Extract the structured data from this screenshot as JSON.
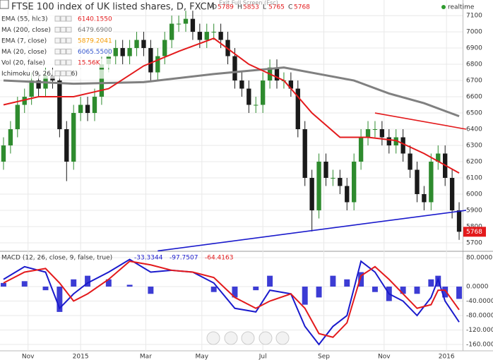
{
  "chart_data": [
    {
      "type": "candlestick",
      "title": "FTSE 100 index of UK listed shares, D, FXCM",
      "realtime": "realtime",
      "overlay_text": "Exit Full Screen (Esc)",
      "ohlc": [
        {
          "label": "O",
          "value": 5789
        },
        {
          "label": "H",
          "value": 5853
        },
        {
          "label": "L",
          "value": 5765
        },
        {
          "label": "C",
          "value": 5768
        }
      ],
      "legend": [
        {
          "label": "EMA (55, hlc3)",
          "value": "6140.1550",
          "color": "#e31a1c"
        },
        {
          "label": "MA (200, close)",
          "value": "6479.6900",
          "color": "#777777"
        },
        {
          "label": "EMA (7, close)",
          "value": "5879.2041",
          "color": "#f59b00"
        },
        {
          "label": "MA (20, close)",
          "value": "6065.5500",
          "color": "#3355cc"
        },
        {
          "label": "Vol (20, false)",
          "value": "15.56K",
          "color": "#e31a1c"
        },
        {
          "label": "Ichimoku (9, 26, 52, 26)",
          "value": "",
          "color": "#bbbbbb"
        }
      ],
      "up_color": "#2e8b2e",
      "down_color": "#1a1a1a",
      "open": [
        6200,
        6300,
        6400,
        6550,
        6600,
        6700,
        6650,
        6730,
        6700,
        6400,
        6200,
        6500,
        6550,
        6500,
        6600,
        6800,
        6850,
        6900,
        6850,
        6900,
        6950,
        6900,
        6750,
        6850,
        6950,
        7050,
        7050,
        7080,
        7000,
        6950,
        7000,
        7000,
        6950,
        6850,
        6700,
        6650,
        6550,
        6550,
        6700,
        6780,
        6700,
        6700,
        6650,
        6400,
        6100,
        5900,
        6200,
        6100,
        6100,
        6050,
        5950,
        6200,
        6350,
        6400,
        6400,
        6350,
        6300,
        6350,
        6250,
        6150,
        6000,
        5950,
        6200,
        6250,
        6100,
        5900
      ],
      "high": [
        6350,
        6450,
        6600,
        6650,
        6750,
        6750,
        6780,
        6780,
        6750,
        6450,
        6550,
        6600,
        6600,
        6650,
        6850,
        6900,
        6950,
        6950,
        6950,
        7000,
        7000,
        6950,
        6900,
        7000,
        7100,
        7100,
        7130,
        7130,
        7050,
        7050,
        7050,
        7050,
        7000,
        6900,
        6750,
        6700,
        6600,
        6750,
        6830,
        6830,
        6750,
        6750,
        6700,
        6450,
        6150,
        6250,
        6250,
        6150,
        6150,
        6100,
        6250,
        6400,
        6450,
        6450,
        6450,
        6400,
        6400,
        6400,
        6300,
        6200,
        6050,
        6250,
        6300,
        6300,
        6150,
        5950
      ],
      "low": [
        6150,
        6250,
        6350,
        6500,
        6550,
        6600,
        6600,
        6650,
        6350,
        6080,
        6150,
        6450,
        6450,
        6450,
        6550,
        6750,
        6800,
        6800,
        6800,
        6850,
        6850,
        6700,
        6700,
        6800,
        6900,
        7000,
        7000,
        6950,
        6900,
        6900,
        6950,
        6900,
        6800,
        6650,
        6600,
        6500,
        6500,
        6500,
        6650,
        6650,
        6650,
        6600,
        6350,
        6050,
        5770,
        5850,
        6050,
        6050,
        6000,
        5900,
        5900,
        6150,
        6300,
        6350,
        6300,
        6250,
        6250,
        6200,
        6100,
        5950,
        5900,
        5900,
        6150,
        6050,
        5850,
        5718
      ],
      "close": [
        6300,
        6400,
        6550,
        6600,
        6700,
        6650,
        6730,
        6700,
        6400,
        6200,
        6500,
        6550,
        6500,
        6600,
        6800,
        6850,
        6900,
        6850,
        6900,
        6950,
        6900,
        6750,
        6850,
        6950,
        7050,
        7050,
        7080,
        7000,
        6950,
        7000,
        7000,
        6950,
        6850,
        6700,
        6650,
        6550,
        6550,
        6700,
        6780,
        6700,
        6700,
        6650,
        6400,
        6100,
        5900,
        6200,
        6100,
        6100,
        6050,
        5950,
        6200,
        6350,
        6400,
        6400,
        6350,
        6300,
        6350,
        6250,
        6150,
        6000,
        5950,
        6200,
        6250,
        6100,
        5900,
        5768
      ],
      "lines": [
        {
          "color": "#808080",
          "width": 3,
          "x": [
            0,
            10,
            20,
            30,
            40,
            50,
            55,
            60,
            65
          ],
          "values": [
            6700,
            6680,
            6690,
            6740,
            6780,
            6700,
            6620,
            6560,
            6480
          ]
        },
        {
          "color": "#e31a1c",
          "width": 2,
          "x": [
            0,
            5,
            10,
            15,
            20,
            25,
            30,
            35,
            40,
            44,
            48,
            52,
            56,
            60,
            65
          ],
          "values": [
            6550,
            6600,
            6600,
            6650,
            6790,
            6880,
            6960,
            6800,
            6700,
            6500,
            6350,
            6350,
            6330,
            6250,
            6130
          ]
        }
      ],
      "trendlines": [
        {
          "color": "#e31a1c",
          "x": [
            53,
            66
          ],
          "values": [
            6500,
            6400
          ]
        },
        {
          "color": "#1a1acc",
          "x": [
            22,
            66
          ],
          "values": [
            5650,
            5900
          ]
        }
      ],
      "xlim": [
        -0.5,
        65.5
      ],
      "ylim": [
        5652,
        7196
      ],
      "yticks": [
        5700,
        5800,
        5900,
        6000,
        6100,
        6200,
        6300,
        6400,
        6500,
        6600,
        6700,
        6800,
        6900,
        7000,
        7100
      ],
      "xticks": [
        {
          "value": 3.5,
          "label": "Nov"
        },
        {
          "value": 11,
          "label": "2015"
        },
        {
          "value": 20.3,
          "label": "Mar"
        },
        {
          "value": 28.3,
          "label": "May"
        },
        {
          "value": 37,
          "label": "Jul"
        },
        {
          "value": 45.7,
          "label": "Sep"
        },
        {
          "value": 54.3,
          "label": "Nov"
        },
        {
          "value": 63.2,
          "label": "2016"
        }
      ],
      "grid": true
    },
    {
      "type": "macd",
      "title": "MACD (12, 26, close, 9, false, true)",
      "header_values": [
        {
          "value": -33.3344,
          "color": "#1a1acc"
        },
        {
          "value": -97.7507,
          "color": "#1a1acc"
        },
        {
          "value": -64.4163,
          "color": "#e31a1c"
        }
      ],
      "x": [
        0,
        3,
        6,
        8,
        10,
        12,
        15,
        18,
        21,
        24,
        27,
        30,
        33,
        36,
        38,
        41,
        43,
        45,
        47,
        49,
        51,
        53,
        55,
        57,
        59,
        61,
        62,
        63,
        65
      ],
      "series": [
        {
          "name": "Histogram",
          "color": "#1a1acc",
          "kind": "bar",
          "values": [
            10,
            15,
            -10,
            -70,
            20,
            30,
            20,
            5,
            -20,
            0,
            0,
            -15,
            -30,
            -10,
            30,
            0,
            -50,
            -30,
            30,
            20,
            40,
            -15,
            -40,
            -20,
            -20,
            20,
            30,
            -30,
            -34
          ]
        },
        {
          "name": "MACD",
          "color": "#1a1acc",
          "kind": "line",
          "values": [
            20,
            55,
            40,
            -60,
            -20,
            10,
            40,
            75,
            40,
            45,
            40,
            10,
            -60,
            -70,
            -10,
            -20,
            -110,
            -160,
            -110,
            -80,
            70,
            40,
            -20,
            -40,
            -80,
            -30,
            20,
            -40,
            -98
          ]
        },
        {
          "name": "Signal",
          "color": "#e31a1c",
          "kind": "line",
          "values": [
            10,
            40,
            50,
            10,
            -40,
            -20,
            20,
            70,
            60,
            45,
            40,
            25,
            -30,
            -60,
            -40,
            -20,
            -60,
            -130,
            -140,
            -100,
            30,
            55,
            20,
            -20,
            -60,
            -50,
            -10,
            -10,
            -64
          ]
        }
      ],
      "xlim": [
        -0.5,
        65.5
      ],
      "ylim": [
        -177.5,
        95.6
      ],
      "yticks": [
        {
          "value": 80,
          "label": "80.0000"
        },
        {
          "value": 0,
          "label": "0.0000"
        },
        {
          "value": -40,
          "label": "-40.0000"
        },
        {
          "value": -80,
          "label": "-80.0000"
        },
        {
          "value": -120,
          "label": "-120.0000"
        },
        {
          "value": -160,
          "label": "-160.0000"
        }
      ],
      "grid": true
    }
  ]
}
